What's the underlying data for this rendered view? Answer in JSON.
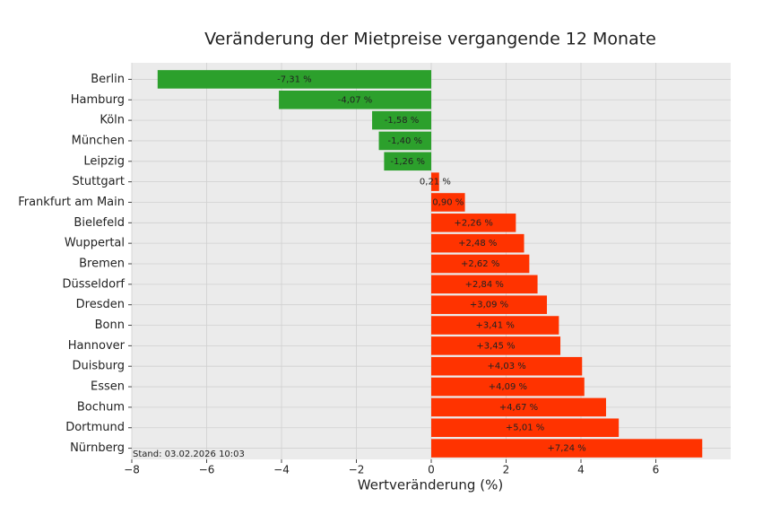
{
  "chart_data": {
    "type": "barh",
    "title": "Veränderung der Mietpreise vergangende 12 Monate",
    "xlabel": "Wertveränderung (%)",
    "footnote": "Stand: 03.02.2026 10:03",
    "categories": [
      "Berlin",
      "Hamburg",
      "Köln",
      "München",
      "Leipzig",
      "Stuttgart",
      "Frankfurt am Main",
      "Bielefeld",
      "Wuppertal",
      "Bremen",
      "Düsseldorf",
      "Dresden",
      "Bonn",
      "Hannover",
      "Duisburg",
      "Essen",
      "Bochum",
      "Dortmund",
      "Nürnberg"
    ],
    "values": [
      -7.31,
      -4.07,
      -1.58,
      -1.4,
      -1.26,
      0.21,
      0.9,
      2.26,
      2.48,
      2.62,
      2.84,
      3.09,
      3.41,
      3.45,
      4.03,
      4.09,
      4.67,
      5.01,
      7.24
    ],
    "value_labels": [
      "-7,31 %",
      "-4,07 %",
      "-1,58 %",
      "-1,40 %",
      "-1,26 %",
      "0,21 %",
      "0,90 %",
      "+2,26 %",
      "+2,48 %",
      "+2,62 %",
      "+2,84 %",
      "+3,09 %",
      "+3,41 %",
      "+3,45 %",
      "+4,03 %",
      "+4,09 %",
      "+4,67 %",
      "+5,01 %",
      "+7,24 %"
    ],
    "colors": [
      "#2ca02c",
      "#2ca02c",
      "#2ca02c",
      "#2ca02c",
      "#2ca02c",
      "#ff3300",
      "#ff3300",
      "#ff3300",
      "#ff3300",
      "#ff3300",
      "#ff3300",
      "#ff3300",
      "#ff3300",
      "#ff3300",
      "#ff3300",
      "#ff3300",
      "#ff3300",
      "#ff3300",
      "#ff3300"
    ],
    "xlim": [
      -8,
      8
    ],
    "xticks": [
      {
        "value": -8,
        "label": "−8"
      },
      {
        "value": -6,
        "label": "−6"
      },
      {
        "value": -4,
        "label": "−4"
      },
      {
        "value": -2,
        "label": "−2"
      },
      0,
      2,
      4,
      6
    ],
    "grid": true
  }
}
